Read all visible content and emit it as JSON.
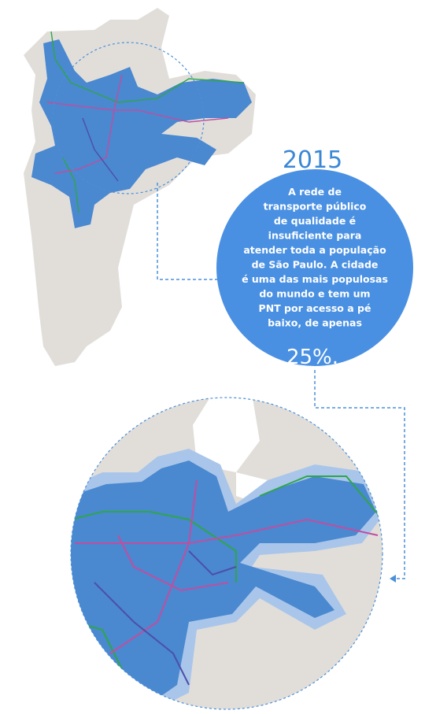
{
  "year": "2015",
  "description": {
    "lines": [
      "A rede de",
      "transporte público",
      "de qualidade é",
      "insuficiente para",
      "atender toda a população",
      "de São Paulo. A cidade",
      "é uma das mais populosas",
      "do mundo e tem um",
      "PNT por acesso a pé",
      "baixo, de apenas"
    ],
    "highlight": "25%."
  }
}
